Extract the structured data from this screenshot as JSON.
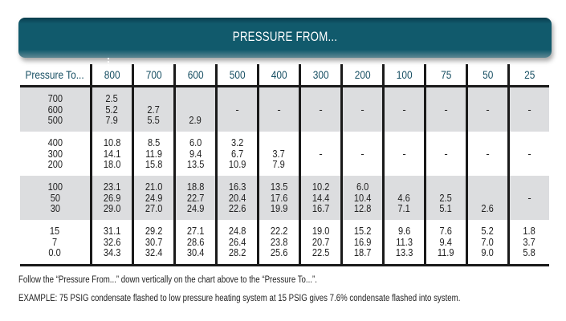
{
  "banner": {
    "title": "PRESSURE FROM..."
  },
  "table": {
    "row_header": "Pressure To...",
    "columns": [
      "800",
      "700",
      "600",
      "500",
      "400",
      "300",
      "200",
      "100",
      "75",
      "50",
      "25"
    ],
    "groups": [
      {
        "to": [
          "700",
          "600",
          "500"
        ],
        "cells": [
          [
            "2.5",
            "5.2",
            "7.9"
          ],
          [
            "",
            "2.7",
            "5.5"
          ],
          [
            "",
            "",
            "2.9"
          ],
          "-",
          "-",
          "-",
          "-",
          "-",
          "-",
          "-",
          "-"
        ]
      },
      {
        "to": [
          "400",
          "300",
          "200"
        ],
        "cells": [
          [
            "10.8",
            "14.1",
            "18.0"
          ],
          [
            "8.5",
            "11.9",
            "15.8"
          ],
          [
            "6.0",
            "9.4",
            "13.5"
          ],
          [
            "3.2",
            "6.7",
            "10.9"
          ],
          [
            "",
            "3.7",
            "7.9"
          ],
          "-",
          "-",
          "-",
          "-",
          "-",
          "-"
        ]
      },
      {
        "to": [
          "100",
          "50",
          "30"
        ],
        "cells": [
          [
            "23.1",
            "26.9",
            "29.0"
          ],
          [
            "21.0",
            "24.9",
            "27.0"
          ],
          [
            "18.8",
            "22.7",
            "24.9"
          ],
          [
            "16.3",
            "20.4",
            "22.6"
          ],
          [
            "13.5",
            "17.6",
            "19.9"
          ],
          [
            "10.2",
            "14.4",
            "16.7"
          ],
          [
            "6.0",
            "10.4",
            "12.8"
          ],
          [
            "",
            "4.6",
            "7.1"
          ],
          [
            "",
            "2.5",
            "5.1"
          ],
          [
            "",
            "",
            "2.6"
          ],
          "-"
        ]
      },
      {
        "to": [
          "15",
          "7",
          "0.0"
        ],
        "cells": [
          [
            "31.1",
            "32.6",
            "34.3"
          ],
          [
            "29.2",
            "30.7",
            "32.4"
          ],
          [
            "27.1",
            "28.6",
            "30.4"
          ],
          [
            "24.8",
            "26.4",
            "28.2"
          ],
          [
            "22.2",
            "23.8",
            "25.6"
          ],
          [
            "19.0",
            "20.7",
            "22.5"
          ],
          [
            "15.2",
            "16.9",
            "18.7"
          ],
          [
            "9.6",
            "11.3",
            "13.3"
          ],
          [
            "7.6",
            "9.4",
            "11.9"
          ],
          [
            "5.2",
            "7.0",
            "9.0"
          ],
          [
            "1.8",
            "3.7",
            "5.8"
          ]
        ]
      }
    ]
  },
  "footer": {
    "line1": "Follow the “Pressure From...” down vertically on the chart above to the “Pressure To...”.",
    "line2": "EXAMPLE: 75 PSIG condensate flashed to low pressure heating system at 15 PSIG gives 7.6% condensate flashed into system."
  }
}
